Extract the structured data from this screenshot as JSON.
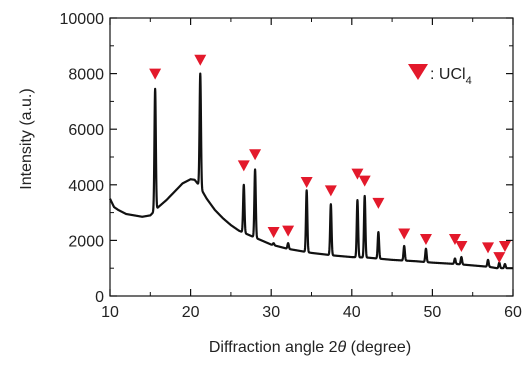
{
  "chart_data": {
    "type": "line",
    "title": "",
    "xlabel": "Diffraction angle 2θ (degree)",
    "xlabel_prefix": "Diffraction angle 2",
    "xlabel_symbol": "θ",
    "xlabel_suffix": " (degree)",
    "ylabel": "Intensity (a.u.)",
    "xlim": [
      10,
      60
    ],
    "ylim": [
      0,
      10000
    ],
    "xticks": [
      10,
      20,
      30,
      40,
      50,
      60
    ],
    "yticks": [
      0,
      2000,
      4000,
      6000,
      8000,
      10000
    ],
    "xtick_labels": [
      "10",
      "20",
      "30",
      "40",
      "50",
      "60"
    ],
    "ytick_labels": [
      "0",
      "2000",
      "4000",
      "6000",
      "8000",
      "10000"
    ],
    "grid": false,
    "legend": {
      "placement": "top-right",
      "marker": "red-down-triangle",
      "label_prefix": ": UCl",
      "label_subscript": "4"
    },
    "line_color": "#111111",
    "marker_color": "#e3192b",
    "background": [
      [
        10.0,
        3500
      ],
      [
        10.5,
        3200
      ],
      [
        11.0,
        3100
      ],
      [
        12.0,
        2950
      ],
      [
        13.0,
        2900
      ],
      [
        14.0,
        2850
      ],
      [
        15.0,
        2900
      ],
      [
        16.0,
        3200
      ],
      [
        17.0,
        3450
      ],
      [
        18.0,
        3750
      ],
      [
        19.0,
        4050
      ],
      [
        20.0,
        4200
      ],
      [
        20.5,
        4180
      ],
      [
        21.0,
        4000
      ],
      [
        22.0,
        3500
      ],
      [
        23.0,
        3100
      ],
      [
        24.0,
        2800
      ],
      [
        25.0,
        2550
      ],
      [
        26.0,
        2350
      ],
      [
        28.0,
        2100
      ],
      [
        30.0,
        1850
      ],
      [
        32.0,
        1700
      ],
      [
        35.0,
        1550
      ],
      [
        38.0,
        1450
      ],
      [
        40.0,
        1400
      ],
      [
        42.0,
        1380
      ],
      [
        45.0,
        1300
      ],
      [
        48.0,
        1250
      ],
      [
        50.0,
        1200
      ],
      [
        53.0,
        1150
      ],
      [
        55.0,
        1100
      ],
      [
        57.0,
        1050
      ],
      [
        58.0,
        1000
      ],
      [
        59.0,
        1000
      ],
      [
        60.0,
        1000
      ]
    ],
    "peaks": [
      {
        "x": 15.6,
        "y": 7450,
        "w": 0.12
      },
      {
        "x": 21.2,
        "y": 8000,
        "w": 0.12
      },
      {
        "x": 26.6,
        "y": 4000,
        "w": 0.12
      },
      {
        "x": 28.0,
        "y": 4550,
        "w": 0.12
      },
      {
        "x": 30.3,
        "y": 1900,
        "w": 0.12
      },
      {
        "x": 32.1,
        "y": 1900,
        "w": 0.12
      },
      {
        "x": 34.4,
        "y": 3800,
        "w": 0.12
      },
      {
        "x": 37.4,
        "y": 3300,
        "w": 0.12
      },
      {
        "x": 40.7,
        "y": 3450,
        "w": 0.12
      },
      {
        "x": 41.6,
        "y": 3600,
        "w": 0.12
      },
      {
        "x": 43.3,
        "y": 2300,
        "w": 0.12
      },
      {
        "x": 46.5,
        "y": 1800,
        "w": 0.12
      },
      {
        "x": 49.2,
        "y": 1700,
        "w": 0.12
      },
      {
        "x": 52.8,
        "y": 1350,
        "w": 0.12
      },
      {
        "x": 53.6,
        "y": 1400,
        "w": 0.12
      },
      {
        "x": 56.9,
        "y": 1300,
        "w": 0.12
      },
      {
        "x": 58.3,
        "y": 1200,
        "w": 0.12
      },
      {
        "x": 59.0,
        "y": 1150,
        "w": 0.12
      }
    ],
    "markers": [
      {
        "x": 15.6,
        "y": 8000
      },
      {
        "x": 21.2,
        "y": 8500
      },
      {
        "x": 26.6,
        "y": 4700
      },
      {
        "x": 28.0,
        "y": 5100
      },
      {
        "x": 30.3,
        "y": 2300
      },
      {
        "x": 32.1,
        "y": 2350
      },
      {
        "x": 34.4,
        "y": 4100
      },
      {
        "x": 37.4,
        "y": 3800
      },
      {
        "x": 40.7,
        "y": 4400
      },
      {
        "x": 41.6,
        "y": 4150
      },
      {
        "x": 43.3,
        "y": 3350
      },
      {
        "x": 46.5,
        "y": 2250
      },
      {
        "x": 49.2,
        "y": 2050
      },
      {
        "x": 52.8,
        "y": 2050
      },
      {
        "x": 53.6,
        "y": 1800
      },
      {
        "x": 56.9,
        "y": 1750
      },
      {
        "x": 58.3,
        "y": 1400
      },
      {
        "x": 59.0,
        "y": 1800
      }
    ]
  }
}
